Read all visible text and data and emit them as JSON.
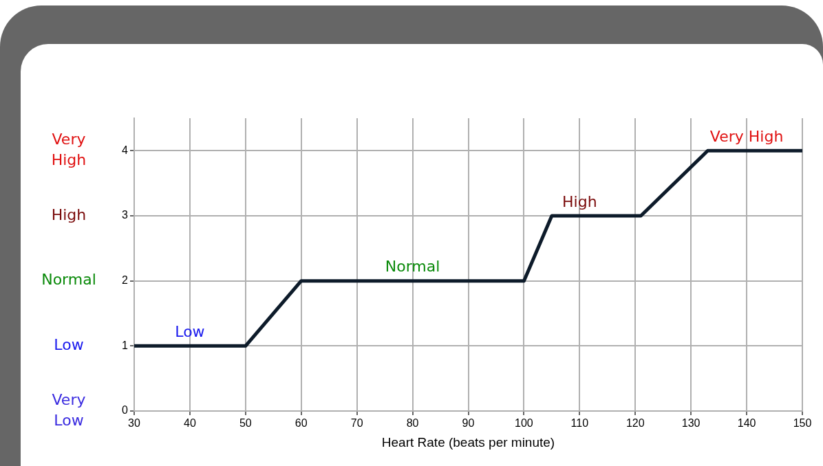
{
  "chart_data": {
    "type": "line",
    "xlabel": "Heart Rate (beats per minute)",
    "x": [
      30,
      50,
      60,
      100,
      105,
      121,
      133,
      150
    ],
    "series": [
      {
        "color": "#0d1b2a",
        "values": [
          1,
          1,
          2,
          2,
          3,
          3,
          4,
          4
        ]
      }
    ],
    "xlim": [
      30,
      150
    ],
    "xticks": [
      30,
      40,
      50,
      60,
      70,
      80,
      90,
      100,
      110,
      120,
      130,
      140,
      150
    ],
    "ylim": [
      0,
      4.5
    ],
    "yticks": [
      0,
      1,
      2,
      3,
      4
    ],
    "grid": true,
    "legend": false,
    "marker": "none",
    "line_style": "solid",
    "annotations": [
      "Very High",
      "High",
      "Normal",
      "Low",
      "Very Low",
      {
        "text": "Low",
        "x": 40,
        "y": 1
      },
      {
        "text": "Normal",
        "x": 80,
        "y": 2
      },
      {
        "text": "High",
        "x": 110,
        "y": 3
      },
      {
        "text": "Very High",
        "x": 140,
        "y": 4
      }
    ]
  }
}
